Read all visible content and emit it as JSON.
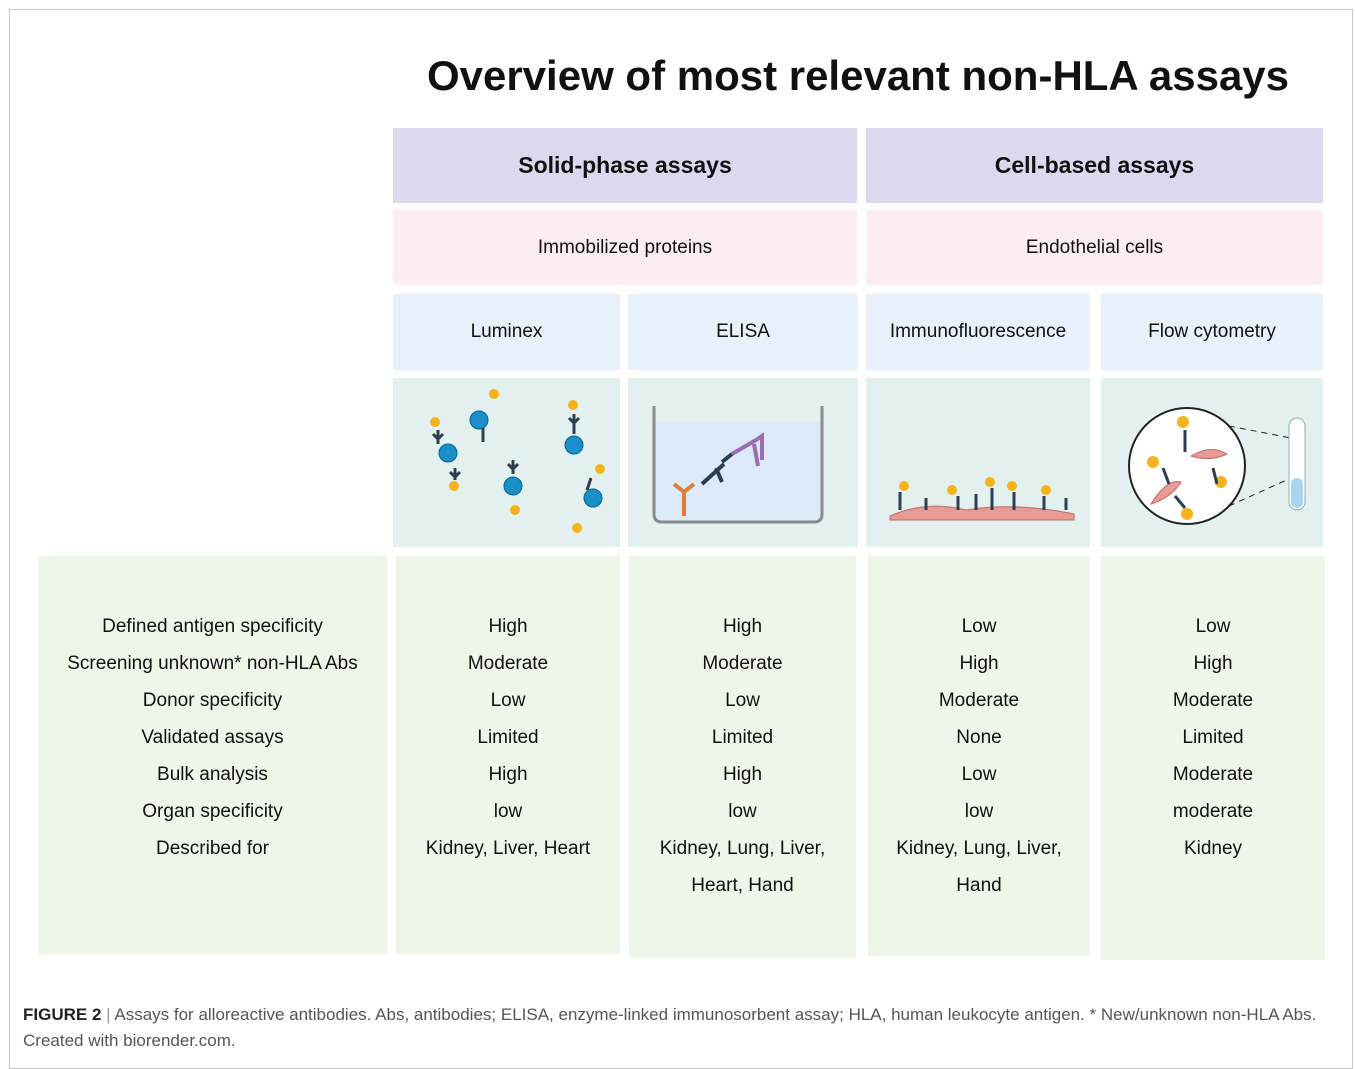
{
  "title": "Overview of most relevant non-HLA assays",
  "groups": [
    {
      "title": "Solid-phase assays",
      "subtitle": "Immobilized proteins"
    },
    {
      "title": "Cell-based assays",
      "subtitle": "Endothelial cells"
    }
  ],
  "methods": [
    "Luminex",
    "ELISA",
    "Immunofluorescence",
    "Flow cytometry"
  ],
  "criteria": [
    "Defined antigen specificity",
    "Screening unknown* non-HLA Abs",
    "Donor specificity",
    "Validated assays",
    "Bulk analysis",
    "Organ specificity",
    "Described for"
  ],
  "values": [
    [
      "High",
      "Moderate",
      "Low",
      "Limited",
      "High",
      "low",
      "Kidney, Liver, Heart"
    ],
    [
      "High",
      "Moderate",
      "Low",
      "Limited",
      "High",
      "low",
      "Kidney, Lung, Liver, Heart, Hand"
    ],
    [
      "Low",
      "High",
      "Moderate",
      "None",
      "Low",
      "low",
      "Kidney, Lung, Liver, Hand"
    ],
    [
      "Low",
      "High",
      "Moderate",
      "Limited",
      "Moderate",
      "moderate",
      "Kidney"
    ]
  ],
  "caption": {
    "label": "FIGURE 2",
    "text": "Assays for alloreactive antibodies. Abs, antibodies; ELISA, enzyme-linked immunosorbent assay; HLA, human leukocyte antigen. * New/unknown non-HLA Abs. Created with biorender.com."
  }
}
